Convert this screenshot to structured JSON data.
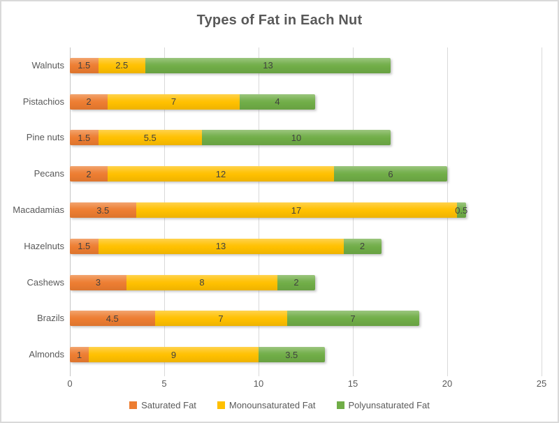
{
  "chart_data": {
    "type": "bar",
    "orientation": "horizontal",
    "stacked": true,
    "title": "Types of Fat in Each Nut",
    "categories": [
      "Walnuts",
      "Pistachios",
      "Pine nuts",
      "Pecans",
      "Macadamias",
      "Hazelnuts",
      "Cashews",
      "Brazils",
      "Almonds"
    ],
    "series": [
      {
        "name": "Saturated Fat",
        "color": "#ED7D31",
        "values": [
          1.5,
          2,
          1.5,
          2,
          3.5,
          1.5,
          3,
          4.5,
          1
        ]
      },
      {
        "name": "Monounsaturated Fat",
        "color": "#FFC000",
        "values": [
          2.5,
          7,
          5.5,
          12,
          17,
          13,
          8,
          7,
          9
        ]
      },
      {
        "name": "Polyunsaturated Fat",
        "color": "#70AD47",
        "values": [
          13,
          4,
          10,
          6,
          0.5,
          2,
          2,
          7,
          3.5
        ]
      }
    ],
    "x_ticks": [
      0,
      5,
      10,
      15,
      20,
      25
    ],
    "xlim": [
      0,
      25
    ],
    "grid": "vertical",
    "legend_position": "bottom",
    "data_labels": true,
    "text_color": "#595959",
    "data_label_color": "#404040",
    "grid_color": "#d9d9d9",
    "background_color": "#ffffff",
    "border_color": "#d9d9d9"
  }
}
